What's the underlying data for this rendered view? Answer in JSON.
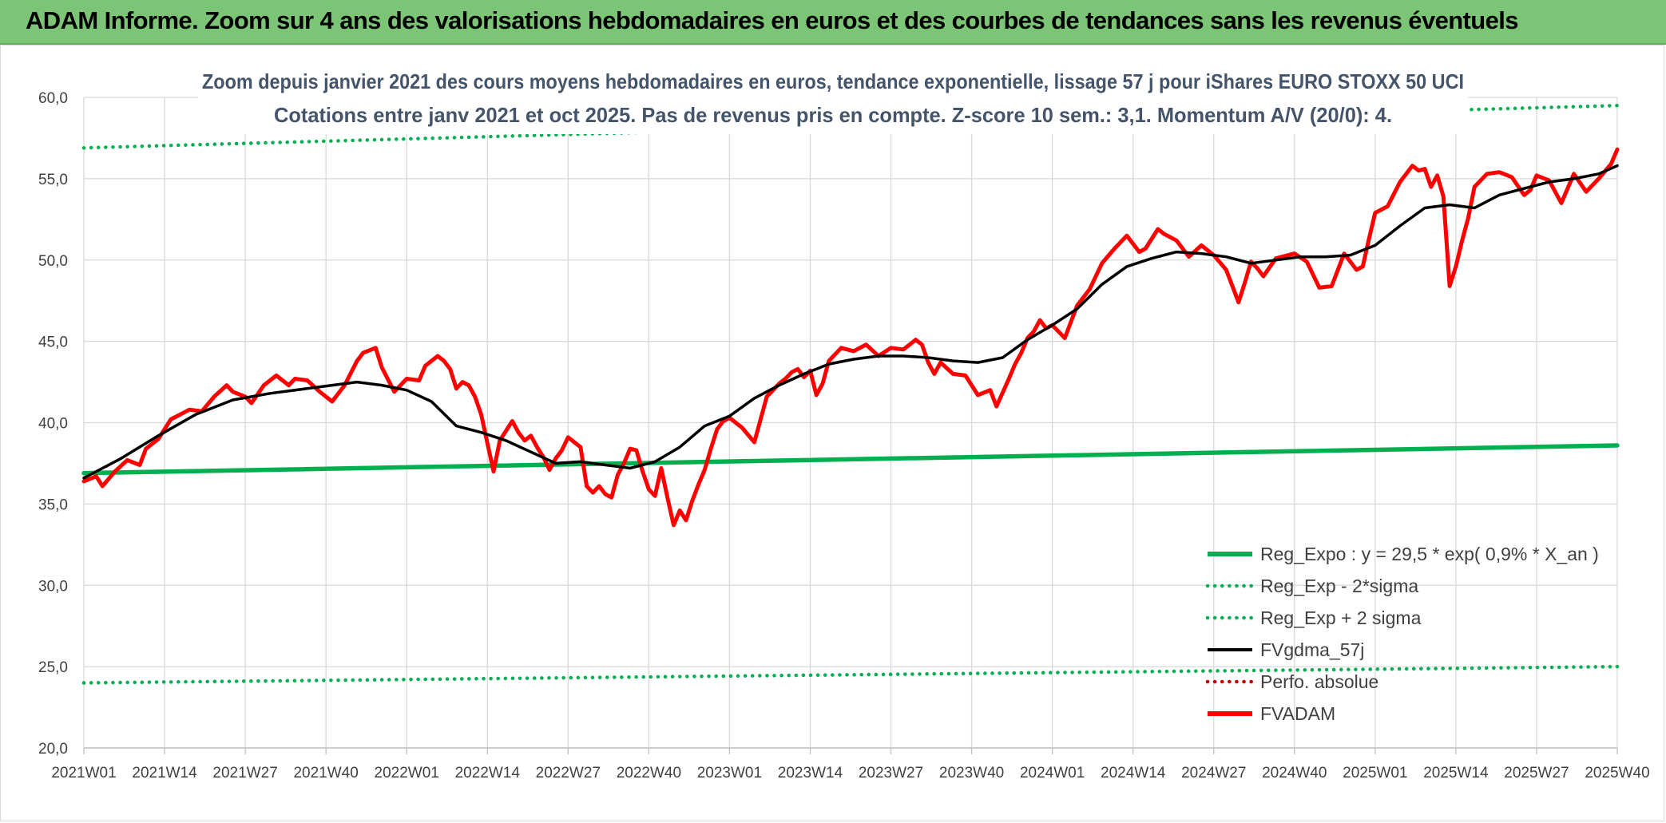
{
  "header": {
    "title": "ADAM Informe. Zoom sur 4 ans des valorisations hebdomadaires en euros et des courbes de tendances sans les revenus éventuels"
  },
  "colors": {
    "banner": "#7cc576",
    "reg_expo": "#00b050",
    "fvgdma": "#000000",
    "fvadam": "#ff0000",
    "perfo": "#c00000",
    "grid": "#d9d9d9"
  },
  "chart_data": {
    "type": "line",
    "title": "Zoom depuis janvier 2021 des cours moyens hebdomadaires en euros, tendance exponentielle, lissage 57 j pour iShares EURO STOXX 50 UCI",
    "subtitle": "Cotations entre janv 2021 et oct 2025. Pas de revenus pris en compte. Z-score 10 sem.: 3,1. Momentum A/V (20/0): 4.",
    "xlabel": "",
    "ylabel": "",
    "ylim": [
      20,
      60
    ],
    "y_ticks": [
      "20,0",
      "25,0",
      "30,0",
      "35,0",
      "40,0",
      "45,0",
      "50,0",
      "55,0",
      "60,0"
    ],
    "x_ticks": [
      "2021W01",
      "2021W14",
      "2021W27",
      "2021W40",
      "2022W01",
      "2022W14",
      "2022W27",
      "2022W40",
      "2023W01",
      "2023W14",
      "2023W27",
      "2023W40",
      "2024W01",
      "2024W14",
      "2024W27",
      "2024W40",
      "2025W01",
      "2025W14",
      "2025W27",
      "2025W40"
    ],
    "x_tick_index": [
      0,
      13,
      26,
      39,
      52,
      65,
      78,
      91,
      104,
      117,
      130,
      143,
      156,
      169,
      182,
      195,
      208,
      221,
      234,
      247
    ],
    "n_weeks": 248,
    "grid": true,
    "legend_position": "bottom-right",
    "series": [
      {
        "name": "Reg_Expo : y = 29,5 * exp( 0,9% *  X_an )",
        "style": "solid-thick",
        "color": "#00b050",
        "x": [
          0,
          247
        ],
        "values": [
          36.9,
          38.6
        ]
      },
      {
        "name": "Reg_Exp - 2*sigma",
        "style": "dotted",
        "color": "#00b050",
        "x": [
          0,
          247
        ],
        "values": [
          24.0,
          25.0
        ]
      },
      {
        "name": "Reg_Exp + 2 sigma",
        "style": "dotted",
        "color": "#00b050",
        "x": [
          0,
          247
        ],
        "values": [
          56.9,
          59.5
        ]
      },
      {
        "name": "FVgdma_57j",
        "style": "solid",
        "color": "#000000",
        "x": [
          0,
          6,
          12,
          18,
          24,
          30,
          36,
          40,
          44,
          48,
          52,
          56,
          60,
          64,
          68,
          72,
          76,
          80,
          84,
          88,
          92,
          96,
          100,
          104,
          108,
          112,
          116,
          120,
          124,
          128,
          132,
          136,
          140,
          144,
          148,
          152,
          156,
          160,
          164,
          168,
          172,
          176,
          180,
          184,
          188,
          192,
          196,
          200,
          204,
          208,
          212,
          216,
          220,
          224,
          228,
          232,
          236,
          240,
          244,
          247
        ],
        "values": [
          36.6,
          37.8,
          39.2,
          40.5,
          41.4,
          41.8,
          42.1,
          42.3,
          42.5,
          42.3,
          42.0,
          41.3,
          39.8,
          39.4,
          38.9,
          38.2,
          37.5,
          37.6,
          37.4,
          37.2,
          37.6,
          38.5,
          39.8,
          40.4,
          41.5,
          42.3,
          43.0,
          43.6,
          43.9,
          44.1,
          44.1,
          44.0,
          43.8,
          43.7,
          44.0,
          45.1,
          46.0,
          47.0,
          48.5,
          49.6,
          50.1,
          50.5,
          50.4,
          50.2,
          49.8,
          50.0,
          50.2,
          50.2,
          50.3,
          50.9,
          52.1,
          53.2,
          53.4,
          53.2,
          54.0,
          54.4,
          54.8,
          55.0,
          55.3,
          55.8
        ]
      },
      {
        "name": "Perfo. absolue",
        "style": "dotted-legend-only",
        "color": "#c00000",
        "x": [],
        "values": []
      },
      {
        "name": "FVADAM",
        "style": "solid-thick",
        "color": "#ff0000",
        "x": [
          0,
          2,
          3,
          5,
          7,
          9,
          10,
          12,
          14,
          16,
          17,
          19,
          21,
          23,
          24,
          26,
          27,
          29,
          31,
          33,
          34,
          36,
          38,
          40,
          42,
          44,
          45,
          47,
          48,
          50,
          52,
          54,
          55,
          57,
          58,
          59,
          60,
          61,
          62,
          63,
          64,
          66,
          67,
          68,
          69,
          70,
          71,
          72,
          73,
          74,
          75,
          76,
          77,
          78,
          80,
          81,
          82,
          83,
          84,
          85,
          86,
          87,
          88,
          89,
          90,
          91,
          92,
          93,
          94,
          95,
          96,
          97,
          98,
          99,
          100,
          101,
          102,
          103,
          104,
          106,
          108,
          110,
          112,
          113,
          114,
          115,
          116,
          117,
          118,
          119,
          120,
          122,
          124,
          126,
          128,
          130,
          132,
          134,
          135,
          136,
          137,
          138,
          140,
          142,
          144,
          146,
          147,
          149,
          150,
          151,
          152,
          153,
          154,
          155,
          156,
          158,
          160,
          162,
          164,
          166,
          168,
          170,
          171,
          173,
          174,
          176,
          178,
          180,
          182,
          184,
          186,
          187,
          188,
          189,
          190,
          192,
          193,
          195,
          197,
          199,
          201,
          203,
          205,
          206,
          207,
          208,
          210,
          212,
          214,
          215,
          216,
          217,
          218,
          219,
          220,
          221,
          222,
          223,
          224,
          226,
          228,
          230,
          232,
          233,
          234,
          236,
          238,
          240,
          242,
          244,
          246,
          247
        ],
        "values": [
          36.4,
          36.7,
          36.1,
          37.0,
          37.7,
          37.4,
          38.4,
          39.0,
          40.2,
          40.6,
          40.8,
          40.7,
          41.6,
          42.3,
          41.9,
          41.6,
          41.2,
          42.3,
          42.9,
          42.3,
          42.7,
          42.6,
          41.9,
          41.3,
          42.3,
          43.8,
          44.3,
          44.6,
          43.4,
          41.9,
          42.7,
          42.6,
          43.5,
          44.1,
          43.8,
          43.3,
          42.1,
          42.5,
          42.3,
          41.6,
          40.5,
          37.0,
          38.9,
          39.5,
          40.1,
          39.4,
          38.9,
          39.2,
          38.5,
          37.9,
          37.1,
          37.8,
          38.3,
          39.1,
          38.5,
          36.1,
          35.7,
          36.1,
          35.6,
          35.4,
          36.8,
          37.5,
          38.4,
          38.3,
          37.0,
          35.9,
          35.5,
          37.2,
          35.4,
          33.7,
          34.6,
          34.0,
          35.2,
          36.2,
          37.1,
          38.4,
          39.6,
          40.1,
          40.3,
          39.7,
          38.8,
          41.6,
          42.4,
          42.7,
          43.1,
          43.3,
          42.8,
          43.2,
          41.7,
          42.4,
          43.8,
          44.6,
          44.4,
          44.8,
          44.1,
          44.6,
          44.5,
          45.1,
          44.8,
          43.7,
          43.0,
          43.7,
          43.0,
          42.9,
          41.7,
          42.0,
          41.0,
          42.7,
          43.6,
          44.3,
          45.2,
          45.6,
          46.3,
          45.8,
          46.0,
          45.2,
          47.2,
          48.2,
          49.8,
          50.7,
          51.5,
          50.5,
          50.7,
          51.9,
          51.6,
          51.2,
          50.2,
          50.9,
          50.3,
          49.4,
          47.4,
          48.6,
          49.9,
          49.5,
          49.0,
          50.1,
          50.2,
          50.4,
          49.9,
          48.3,
          48.4,
          50.4,
          49.4,
          49.6,
          51.3,
          52.9,
          53.3,
          54.8,
          55.8,
          55.5,
          55.6,
          54.5,
          55.2,
          53.9,
          48.4,
          49.6,
          51.2,
          52.6,
          54.5,
          55.3,
          55.4,
          55.1,
          54.0,
          54.3,
          55.2,
          54.9,
          53.5,
          55.3,
          54.2,
          55.0,
          55.9,
          56.8
        ]
      }
    ]
  }
}
